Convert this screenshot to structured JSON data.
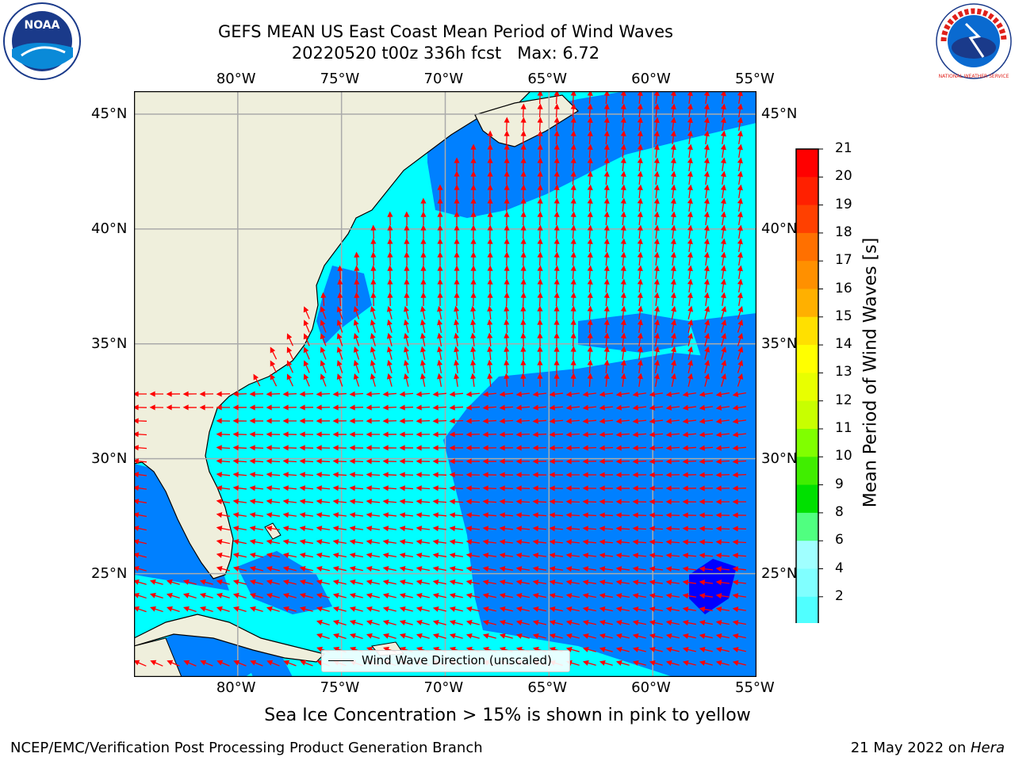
{
  "title": "GEFS MEAN US East Coast Mean Period of Wind Waves",
  "subtitle": "20220520 t00z 336h fcst   Max: 6.72",
  "logos": {
    "left": "NOAA",
    "right": "NATIONAL WEATHER SERVICE"
  },
  "map": {
    "lon_range": [
      -85,
      -55
    ],
    "lat_range": [
      20.5,
      46
    ],
    "lon_ticks": [
      "80°W",
      "75°W",
      "70°W",
      "65°W",
      "60°W",
      "55°W"
    ],
    "lat_ticks": [
      "45°N",
      "40°N",
      "35°N",
      "30°N",
      "25°N"
    ],
    "colors": {
      "land": "#efefdc",
      "ocean_cyan": "#00ffff",
      "ocean_blue": "#0080ff",
      "deep_blue": "#0000ff",
      "arrow": "#ff0000",
      "grid": "#aaaaaa",
      "coast": "#000000"
    },
    "legend_label": "Wind Wave Direction (unscaled)"
  },
  "colorbar": {
    "label": "Mean Period of Wind Waves [s]",
    "ticks": [
      "21",
      "20",
      "19",
      "18",
      "17",
      "16",
      "15",
      "14",
      "13",
      "12",
      "11",
      "10",
      "9",
      "8",
      "7",
      "6",
      "5",
      "4",
      "3",
      "2"
    ],
    "tick_labels": [
      "21",
      "20",
      "19",
      "18",
      "17",
      "16",
      "15",
      "14",
      "13",
      "12",
      "11",
      "10",
      "9",
      "8",
      "6",
      "4",
      "2"
    ],
    "colors": [
      "#ff0000",
      "#ff2000",
      "#ff4000",
      "#ff7000",
      "#ff9000",
      "#ffb000",
      "#ffe000",
      "#ffff00",
      "#e8ff00",
      "#c8ff00",
      "#80ff00",
      "#40ee00",
      "#00e000",
      "#50ff80",
      "#a0ffff",
      "#80ffff",
      "#50ffff",
      "#00ffff",
      "#0080ff",
      "#0000ff"
    ]
  },
  "ice_note": "Sea Ice Concentration > 15% is shown in pink to yellow",
  "footer": {
    "left": "NCEP/EMC/Verification Post Processing Product Generation Branch",
    "right_date": "21 May 2022 on ",
    "right_host": "Hera"
  }
}
